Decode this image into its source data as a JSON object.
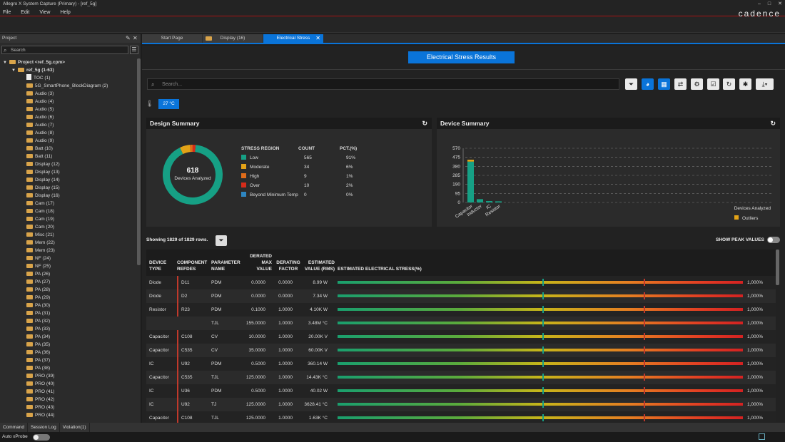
{
  "window": {
    "title": "Allegro X System Capture (Primary) - [ref_5g]",
    "brand": "cadence",
    "controls": [
      "–",
      "□",
      "✕"
    ]
  },
  "menu": [
    "File",
    "Edit",
    "View",
    "Help"
  ],
  "project": {
    "panel_title": "Project",
    "search_placeholder": "Search",
    "tree": [
      {
        "label": "Project <ref_5g.cpm>",
        "level": 0,
        "bold": true,
        "type": "folder",
        "expand": "▼"
      },
      {
        "label": "ref_5g (1-63)",
        "level": 1,
        "bold": true,
        "type": "folder",
        "expand": "▼"
      },
      {
        "label": "TOC (1)",
        "level": 2,
        "type": "page"
      },
      {
        "label": "5G_SmartPhone_BlockDiagram (2)",
        "level": 2,
        "type": "folder"
      },
      {
        "label": "Audio (3)",
        "level": 2,
        "type": "folder"
      },
      {
        "label": "Audio (4)",
        "level": 2,
        "type": "folder"
      },
      {
        "label": "Audio (5)",
        "level": 2,
        "type": "folder"
      },
      {
        "label": "Audio (6)",
        "level": 2,
        "type": "folder"
      },
      {
        "label": "Audio (7)",
        "level": 2,
        "type": "folder"
      },
      {
        "label": "Audio (8)",
        "level": 2,
        "type": "folder"
      },
      {
        "label": "Audio (9)",
        "level": 2,
        "type": "folder"
      },
      {
        "label": "Batt (10)",
        "level": 2,
        "type": "folder"
      },
      {
        "label": "Batt (11)",
        "level": 2,
        "type": "folder"
      },
      {
        "label": "Display (12)",
        "level": 2,
        "type": "folder"
      },
      {
        "label": "Display (13)",
        "level": 2,
        "type": "folder"
      },
      {
        "label": "Display (14)",
        "level": 2,
        "type": "folder"
      },
      {
        "label": "Display (15)",
        "level": 2,
        "type": "folder"
      },
      {
        "label": "Display (16)",
        "level": 2,
        "type": "folder"
      },
      {
        "label": "Cam (17)",
        "level": 2,
        "type": "folder"
      },
      {
        "label": "Cam (18)",
        "level": 2,
        "type": "folder"
      },
      {
        "label": "Cam (19)",
        "level": 2,
        "type": "folder"
      },
      {
        "label": "Cam (20)",
        "level": 2,
        "type": "folder"
      },
      {
        "label": "Misc (21)",
        "level": 2,
        "type": "folder"
      },
      {
        "label": "Mem (22)",
        "level": 2,
        "type": "folder"
      },
      {
        "label": "Mem (23)",
        "level": 2,
        "type": "folder"
      },
      {
        "label": "NF (24)",
        "level": 2,
        "type": "folder"
      },
      {
        "label": "NF (25)",
        "level": 2,
        "type": "folder"
      },
      {
        "label": "PA (26)",
        "level": 2,
        "type": "folder"
      },
      {
        "label": "PA (27)",
        "level": 2,
        "type": "folder"
      },
      {
        "label": "PA (28)",
        "level": 2,
        "type": "folder"
      },
      {
        "label": "PA (29)",
        "level": 2,
        "type": "folder"
      },
      {
        "label": "PA (30)",
        "level": 2,
        "type": "folder"
      },
      {
        "label": "PA (31)",
        "level": 2,
        "type": "folder"
      },
      {
        "label": "PA (32)",
        "level": 2,
        "type": "folder"
      },
      {
        "label": "PA (33)",
        "level": 2,
        "type": "folder"
      },
      {
        "label": "PA (34)",
        "level": 2,
        "type": "folder"
      },
      {
        "label": "PA (35)",
        "level": 2,
        "type": "folder"
      },
      {
        "label": "PA (36)",
        "level": 2,
        "type": "folder"
      },
      {
        "label": "PA (37)",
        "level": 2,
        "type": "folder"
      },
      {
        "label": "PA (38)",
        "level": 2,
        "type": "folder"
      },
      {
        "label": "PRO (39)",
        "level": 2,
        "type": "folder"
      },
      {
        "label": "PRO (40)",
        "level": 2,
        "type": "folder"
      },
      {
        "label": "PRO (41)",
        "level": 2,
        "type": "folder"
      },
      {
        "label": "PRO (42)",
        "level": 2,
        "type": "folder"
      },
      {
        "label": "PRO (43)",
        "level": 2,
        "type": "folder"
      },
      {
        "label": "PRO (44)",
        "level": 2,
        "type": "folder"
      }
    ]
  },
  "bottom_tabs": [
    "Command",
    "Session Log",
    "Violation(1)"
  ],
  "status": {
    "label": "Auto xProbe"
  },
  "tabs": [
    {
      "label": "Start Page",
      "active": false
    },
    {
      "label": "Display (16)",
      "active": false
    },
    {
      "label": "Electrical Stress",
      "active": true
    }
  ],
  "main": {
    "title": "Electrical Stress Results",
    "search_placeholder": "Search...",
    "temperature": "27 °C",
    "toolbar_icons": [
      "filter-icon",
      "pie-chart-icon",
      "table-icon",
      "compare-icon",
      "settings-icon",
      "checkbox-icon",
      "refresh-icon",
      "lightbulb-icon",
      "download-icon"
    ]
  },
  "design_summary": {
    "title": "Design Summary",
    "count": "618",
    "count_label": "Devices Analyzed",
    "headers": [
      "STRESS REGION",
      "COUNT",
      "PCT.(%)"
    ],
    "rows": [
      {
        "region": "Low",
        "count": "565",
        "pct": "91%",
        "color": "#16a085",
        "value": 565
      },
      {
        "region": "Moderate",
        "count": "34",
        "pct": "6%",
        "color": "#e3a317",
        "value": 34
      },
      {
        "region": "High",
        "count": "9",
        "pct": "1%",
        "color": "#e06c1a",
        "value": 9
      },
      {
        "region": "Over",
        "count": "10",
        "pct": "2%",
        "color": "#d62c1a",
        "value": 10
      },
      {
        "region": "Beyond Minimum Temp",
        "count": "0",
        "pct": "0%",
        "color": "#2e86c1",
        "value": 0
      }
    ]
  },
  "device_summary": {
    "title": "Device Summary",
    "legend": "Outliers",
    "xlabel": "Devices Analyzed"
  },
  "chart_data": {
    "type": "bar",
    "categories": [
      "Capacitor",
      "Inductor",
      "IC",
      "Resistor"
    ],
    "series": [
      {
        "values": [
          430,
          35,
          15,
          12
        ]
      },
      {
        "name": "Outliers",
        "values": [
          20,
          0,
          0,
          0
        ]
      }
    ],
    "yticks": [
      "570",
      "475",
      "380",
      "285",
      "190",
      "95",
      "0"
    ],
    "ylim": [
      0,
      570
    ],
    "grid": true,
    "legend_position": "bottom-right",
    "colors": [
      "#16a085",
      "#e3a317"
    ]
  },
  "table": {
    "showing": "Showing 1829 of 1829 rows.",
    "peak_label": "SHOW PEAK VALUES",
    "headers": [
      "DEVICE TYPE",
      "COMPONENT REFDES",
      "PARAMETER NAME",
      "DERATED MAX VALUE",
      "DERATING FACTOR",
      "ESTIMATED VALUE (RMS)",
      "ESTIMATED ELECTRICAL STRESS(%)"
    ],
    "rows": [
      {
        "type": "Diode",
        "ref": "D11",
        "param": "PDM",
        "max": "0.0000",
        "factor": "0.0000",
        "est": "8.99 W",
        "stress": "1,000%"
      },
      {
        "type": "Diode",
        "ref": "D2",
        "param": "PDM",
        "max": "0.0000",
        "factor": "0.0000",
        "est": "7.34 W",
        "stress": "1,000%"
      },
      {
        "type": "Resistor",
        "ref": "R23",
        "param": "PDM",
        "max": "0.1000",
        "factor": "1.0000",
        "est": "4.10K W",
        "stress": "1,000%"
      },
      {
        "type": "",
        "ref": "",
        "param": "TJL",
        "max": "155.0000",
        "factor": "1.0000",
        "est": "3.48M °C",
        "stress": "1,000%"
      },
      {
        "type": "Capacitor",
        "ref": "C108",
        "param": "CV",
        "max": "10.0000",
        "factor": "1.0000",
        "est": "20.00K V",
        "stress": "1,000%"
      },
      {
        "type": "Capacitor",
        "ref": "C535",
        "param": "CV",
        "max": "35.0000",
        "factor": "1.0000",
        "est": "60.00K V",
        "stress": "1,000%"
      },
      {
        "type": "IC",
        "ref": "U92",
        "param": "PDM",
        "max": "0.5000",
        "factor": "1.0000",
        "est": "360.14 W",
        "stress": "1,000%"
      },
      {
        "type": "Capacitor",
        "ref": "C535",
        "param": "TJL",
        "max": "125.0000",
        "factor": "1.0000",
        "est": "14.43K °C",
        "stress": "1,000%"
      },
      {
        "type": "IC",
        "ref": "U36",
        "param": "PDM",
        "max": "0.5000",
        "factor": "1.0000",
        "est": "40.02 W",
        "stress": "1,000%"
      },
      {
        "type": "IC",
        "ref": "U92",
        "param": "TJ",
        "max": "125.0000",
        "factor": "1.0000",
        "est": "3628.41 °C",
        "stress": "1,000%"
      },
      {
        "type": "Capacitor",
        "ref": "C108",
        "param": "TJL",
        "max": "125.0000",
        "factor": "1.0000",
        "est": "1.63K °C",
        "stress": "1,000%"
      }
    ]
  }
}
